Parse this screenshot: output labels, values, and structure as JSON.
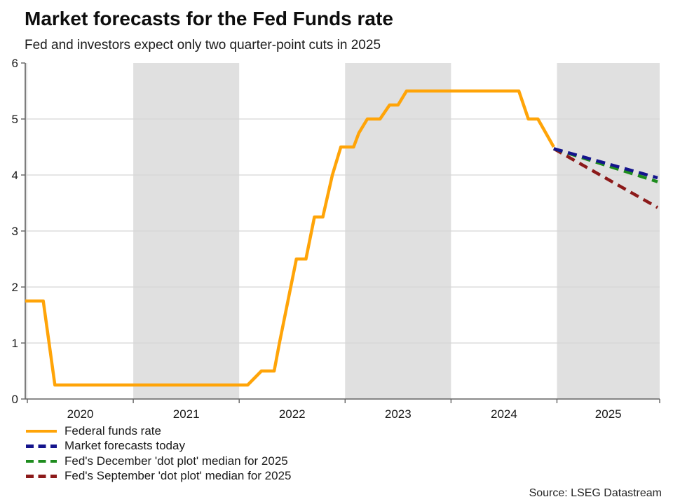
{
  "source_note": "Source: LSEG Datastream",
  "chart_data": {
    "type": "line",
    "title": "Market forecasts for the Fed Funds rate",
    "subtitle": "Fed and investors expect only two quarter-point cuts in 2025",
    "xlabel": "",
    "ylabel": "",
    "xlim": [
      2019.98,
      2025.97
    ],
    "ylim": [
      0,
      6
    ],
    "yticks": [
      0,
      1,
      2,
      3,
      4,
      5,
      6
    ],
    "xtick_years": [
      2020,
      2021,
      2022,
      2023,
      2024,
      2025
    ],
    "grid": "horizontal",
    "legend_position": "bottom-left",
    "band_color": "#e0e0e0",
    "grid_color": "#d6d6d6",
    "axis_color": "#636363",
    "tick_label_color": "#1a1a1a",
    "shaded_year_bands": [
      [
        2019.98,
        2020
      ],
      [
        2021,
        2022
      ],
      [
        2023,
        2024
      ],
      [
        2025,
        2025.97
      ]
    ],
    "series": [
      {
        "name": "Federal funds rate",
        "color": "#FFA408",
        "style": "solid",
        "points": [
          [
            2019.98,
            1.75
          ],
          [
            2020.15,
            1.75
          ],
          [
            2020.26,
            0.25
          ],
          [
            2022.08,
            0.25
          ],
          [
            2022.21,
            0.5
          ],
          [
            2022.33,
            0.5
          ],
          [
            2022.38,
            1.0
          ],
          [
            2022.46,
            1.75
          ],
          [
            2022.54,
            2.5
          ],
          [
            2022.63,
            2.5
          ],
          [
            2022.71,
            3.25
          ],
          [
            2022.79,
            3.25
          ],
          [
            2022.88,
            4.0
          ],
          [
            2022.96,
            4.5
          ],
          [
            2023.08,
            4.5
          ],
          [
            2023.13,
            4.75
          ],
          [
            2023.21,
            5.0
          ],
          [
            2023.33,
            5.0
          ],
          [
            2023.42,
            5.25
          ],
          [
            2023.5,
            5.25
          ],
          [
            2023.58,
            5.5
          ],
          [
            2024.64,
            5.5
          ],
          [
            2024.73,
            5.0
          ],
          [
            2024.82,
            5.0
          ],
          [
            2024.97,
            4.5
          ]
        ]
      },
      {
        "name": "Market forecasts today",
        "color": "#14148C",
        "style": "dashed",
        "points": [
          [
            2024.97,
            4.47
          ],
          [
            2025.95,
            3.95
          ]
        ]
      },
      {
        "name": "Fed's December 'dot plot' median for 2025",
        "color": "#1E8C1E",
        "style": "dashed",
        "points": [
          [
            2024.97,
            4.47
          ],
          [
            2025.95,
            3.88
          ]
        ]
      },
      {
        "name": "Fed's September 'dot plot' median for 2025",
        "color": "#8C1A1A",
        "style": "dashed",
        "points": [
          [
            2024.97,
            4.47
          ],
          [
            2025.95,
            3.42
          ]
        ]
      }
    ]
  }
}
